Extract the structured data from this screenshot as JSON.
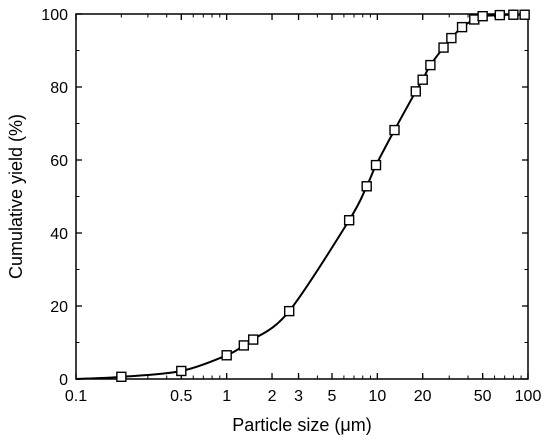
{
  "chart_data": {
    "type": "line",
    "title": "",
    "xlabel": "Particle size (μm)",
    "ylabel": "Cumulative yield (%)",
    "x_scale": "log",
    "xlim": [
      0.1,
      100
    ],
    "ylim": [
      0,
      100
    ],
    "x_ticks": [
      {
        "value": 0.1,
        "label": "0.1"
      },
      {
        "value": 0.5,
        "label": "0.5"
      },
      {
        "value": 1,
        "label": "1"
      },
      {
        "value": 2,
        "label": "2"
      },
      {
        "value": 3,
        "label": "3"
      },
      {
        "value": 5,
        "label": "5"
      },
      {
        "value": 10,
        "label": "10"
      },
      {
        "value": 20,
        "label": "20"
      },
      {
        "value": 50,
        "label": "50"
      },
      {
        "value": 100,
        "label": "100"
      }
    ],
    "y_ticks": [
      {
        "value": 0,
        "label": "0"
      },
      {
        "value": 20,
        "label": "20"
      },
      {
        "value": 40,
        "label": "40"
      },
      {
        "value": 60,
        "label": "60"
      },
      {
        "value": 80,
        "label": "80"
      },
      {
        "value": 100,
        "label": "100"
      }
    ],
    "grid": false,
    "legend": "none",
    "marker": "open-square",
    "line_color": "#000000",
    "series": [
      {
        "points": [
          {
            "x": 0.1,
            "y": 0
          },
          {
            "x": 0.2,
            "y": 0.6
          },
          {
            "x": 0.5,
            "y": 2.2
          },
          {
            "x": 1.0,
            "y": 6.5
          },
          {
            "x": 1.3,
            "y": 9.2
          },
          {
            "x": 1.5,
            "y": 10.8
          },
          {
            "x": 2.6,
            "y": 18.6
          },
          {
            "x": 6.5,
            "y": 43.5
          },
          {
            "x": 8.5,
            "y": 52.8
          },
          {
            "x": 9.8,
            "y": 58.6
          },
          {
            "x": 13.0,
            "y": 68.2
          },
          {
            "x": 18.0,
            "y": 78.8
          },
          {
            "x": 20.0,
            "y": 82.0
          },
          {
            "x": 22.5,
            "y": 86.0
          },
          {
            "x": 27.5,
            "y": 90.8
          },
          {
            "x": 31.0,
            "y": 93.4
          },
          {
            "x": 36.5,
            "y": 96.4
          },
          {
            "x": 44.0,
            "y": 98.5
          },
          {
            "x": 50.0,
            "y": 99.4
          },
          {
            "x": 65.0,
            "y": 99.7
          },
          {
            "x": 80.0,
            "y": 99.8
          },
          {
            "x": 95.0,
            "y": 99.8
          }
        ]
      }
    ]
  }
}
